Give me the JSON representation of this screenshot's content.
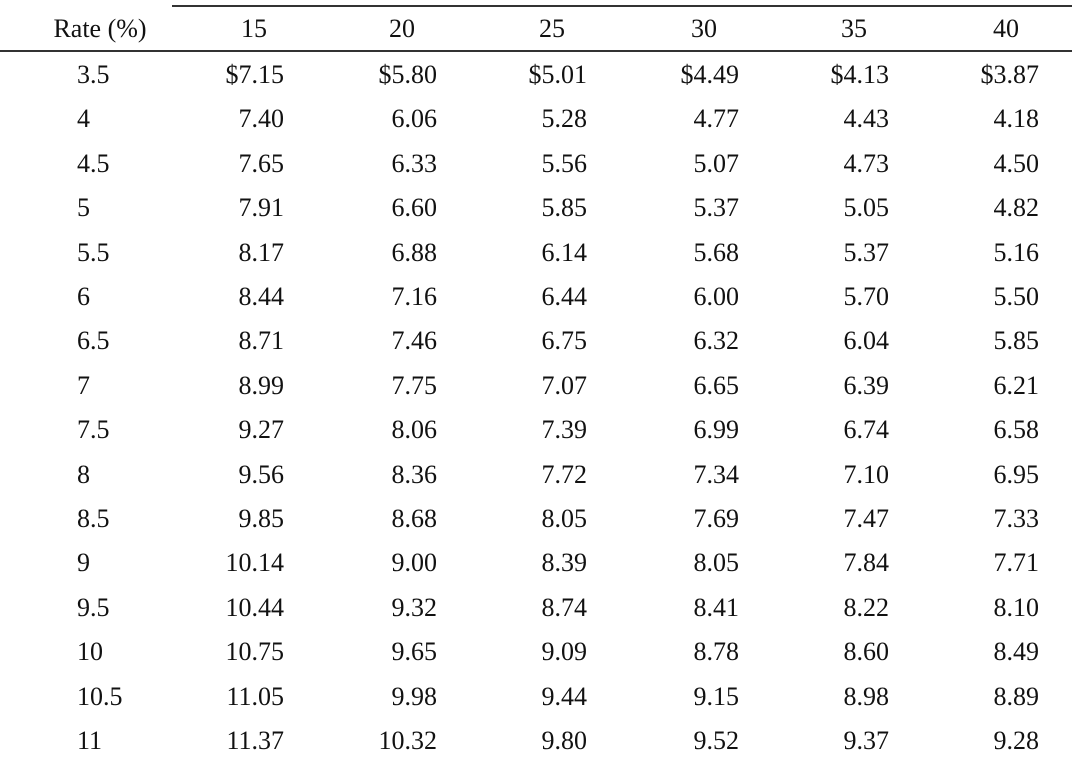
{
  "table": {
    "header": [
      "Rate (%)",
      "15",
      "20",
      "25",
      "30",
      "35",
      "40"
    ],
    "rows": [
      [
        "3.5",
        "$7.15",
        "$5.80",
        "$5.01",
        "$4.49",
        "$4.13",
        "$3.87"
      ],
      [
        "4",
        "7.40",
        "6.06",
        "5.28",
        "4.77",
        "4.43",
        "4.18"
      ],
      [
        "4.5",
        "7.65",
        "6.33",
        "5.56",
        "5.07",
        "4.73",
        "4.50"
      ],
      [
        "5",
        "7.91",
        "6.60",
        "5.85",
        "5.37",
        "5.05",
        "4.82"
      ],
      [
        "5.5",
        "8.17",
        "6.88",
        "6.14",
        "5.68",
        "5.37",
        "5.16"
      ],
      [
        "6",
        "8.44",
        "7.16",
        "6.44",
        "6.00",
        "5.70",
        "5.50"
      ],
      [
        "6.5",
        "8.71",
        "7.46",
        "6.75",
        "6.32",
        "6.04",
        "5.85"
      ],
      [
        "7",
        "8.99",
        "7.75",
        "7.07",
        "6.65",
        "6.39",
        "6.21"
      ],
      [
        "7.5",
        "9.27",
        "8.06",
        "7.39",
        "6.99",
        "6.74",
        "6.58"
      ],
      [
        "8",
        "9.56",
        "8.36",
        "7.72",
        "7.34",
        "7.10",
        "6.95"
      ],
      [
        "8.5",
        "9.85",
        "8.68",
        "8.05",
        "7.69",
        "7.47",
        "7.33"
      ],
      [
        "9",
        "10.14",
        "9.00",
        "8.39",
        "8.05",
        "7.84",
        "7.71"
      ],
      [
        "9.5",
        "10.44",
        "9.32",
        "8.74",
        "8.41",
        "8.22",
        "8.10"
      ],
      [
        "10",
        "10.75",
        "9.65",
        "9.09",
        "8.78",
        "8.60",
        "8.49"
      ],
      [
        "10.5",
        "11.05",
        "9.98",
        "9.44",
        "9.15",
        "8.98",
        "8.89"
      ],
      [
        "11",
        "11.37",
        "10.32",
        "9.80",
        "9.52",
        "9.37",
        "9.28"
      ]
    ]
  }
}
